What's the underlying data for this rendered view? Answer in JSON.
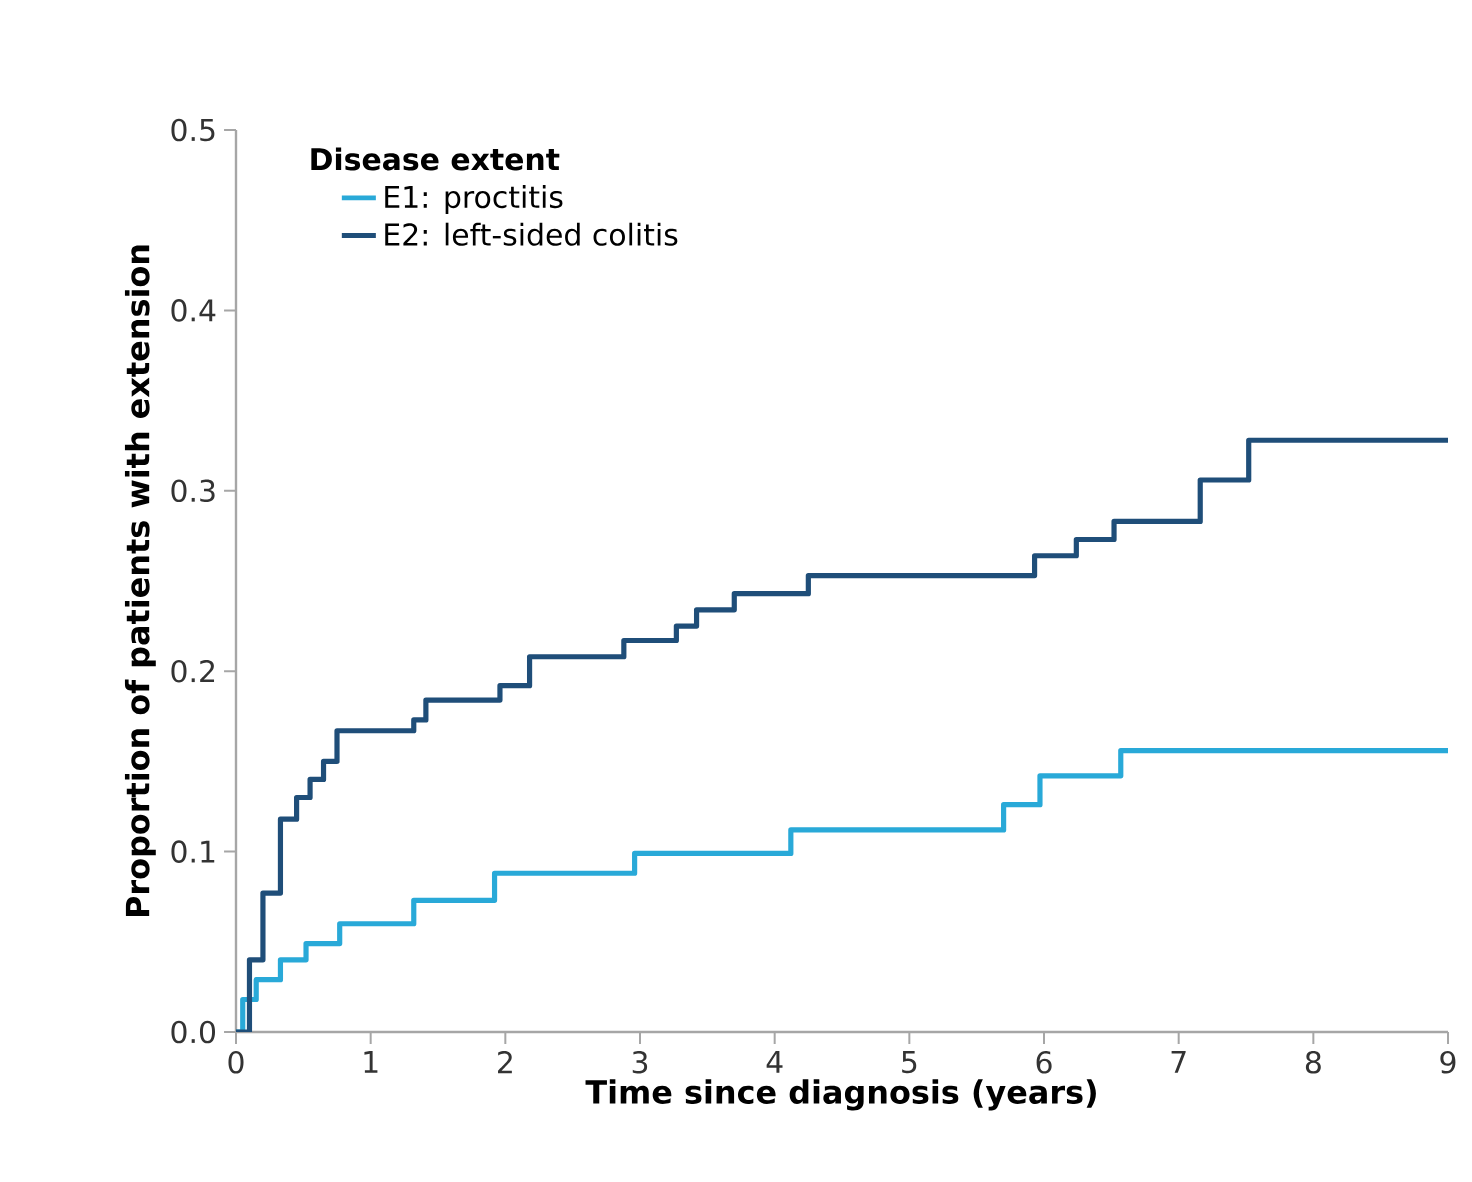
{
  "chart_data": {
    "type": "step",
    "xlabel": "Time since diagnosis (years)",
    "ylabel": "Proportion of patients with extension",
    "legend_title": "Disease extent",
    "legend": "top left",
    "grid": false,
    "marker": "none",
    "line_style": "solid",
    "xlim": [
      0,
      9
    ],
    "xticks": [
      0,
      1,
      2,
      3,
      4,
      5,
      6,
      7,
      8,
      9
    ],
    "ylim": [
      0,
      0.5
    ],
    "yticks": [
      {
        "value": 0,
        "label": "0.0"
      },
      0.1,
      0.2,
      0.3,
      0.4,
      0.5
    ],
    "series": [
      {
        "name": "E1: proctitis",
        "color": "#29a9d8",
        "x": [
          0,
          0.05,
          0.15,
          0.33,
          0.52,
          0.77,
          1.32,
          1.92,
          2.96,
          4.12,
          5.7,
          5.97,
          6.57,
          9
        ],
        "values": [
          0,
          0.018,
          0.029,
          0.04,
          0.049,
          0.06,
          0.073,
          0.088,
          0.099,
          0.112,
          0.126,
          0.142,
          0.156,
          0.156
        ]
      },
      {
        "name": "E2: left-sided colitis",
        "color": "#1f4e79",
        "x": [
          0,
          0.1,
          0.2,
          0.33,
          0.45,
          0.55,
          0.65,
          0.75,
          1.32,
          1.41,
          1.96,
          2.18,
          2.88,
          3.27,
          3.42,
          3.7,
          4.25,
          5.93,
          6.24,
          6.52,
          7.16,
          7.52,
          9
        ],
        "values": [
          0,
          0.04,
          0.077,
          0.118,
          0.13,
          0.14,
          0.15,
          0.167,
          0.173,
          0.184,
          0.192,
          0.208,
          0.217,
          0.225,
          0.234,
          0.243,
          0.253,
          0.264,
          0.273,
          0.283,
          0.306,
          0.328,
          0.328
        ]
      }
    ]
  }
}
